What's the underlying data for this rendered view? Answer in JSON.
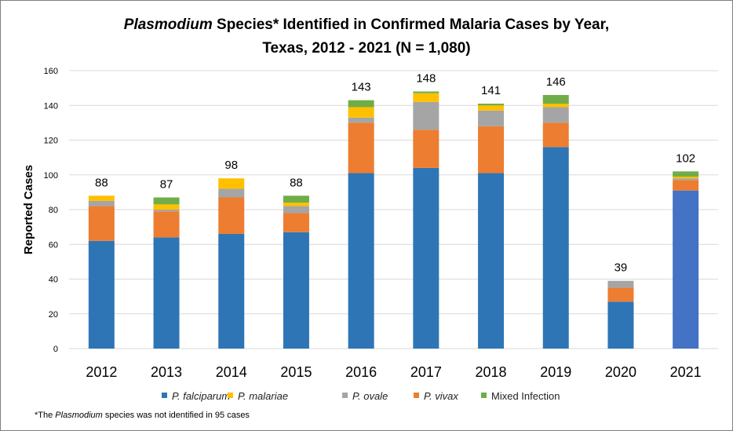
{
  "chart_data": {
    "type": "bar",
    "stacked": true,
    "title_italic": "Plasmodium",
    "title_rest": " Species* Identified in Confirmed Malaria Cases by Year,",
    "title_line2": "Texas, 2012 - 2021 (N = 1,080)",
    "xlabel": "",
    "ylabel": "Reported Cases",
    "ylim": [
      0,
      160
    ],
    "yticks": [
      0,
      20,
      40,
      60,
      80,
      100,
      120,
      140,
      160
    ],
    "grid": true,
    "legend_position": "bottom",
    "categories": [
      "2012",
      "2013",
      "2014",
      "2015",
      "2016",
      "2017",
      "2018",
      "2019",
      "2020",
      "2021"
    ],
    "totals": [
      88,
      87,
      98,
      88,
      143,
      148,
      141,
      146,
      39,
      102
    ],
    "series": [
      {
        "name": "P. falciparum",
        "color": "#2E75B6",
        "values": [
          62,
          64,
          66,
          67,
          101,
          104,
          101,
          116,
          27,
          91
        ]
      },
      {
        "name": "P. vivax",
        "color": "#ED7D31",
        "values": [
          20,
          15,
          21,
          11,
          29,
          22,
          27,
          14,
          8,
          6
        ]
      },
      {
        "name": "P. ovale",
        "color": "#A5A5A5",
        "values": [
          3,
          1,
          5,
          4,
          3,
          16,
          9,
          9,
          4,
          1
        ]
      },
      {
        "name": "P. malariae",
        "color": "#FFC000",
        "values": [
          3,
          3,
          6,
          2,
          6,
          5,
          3,
          2,
          0,
          1
        ]
      },
      {
        "name": "Mixed Infection",
        "color": "#70AD47",
        "values": [
          0,
          4,
          0,
          4,
          4,
          1,
          1,
          5,
          0,
          3
        ]
      }
    ],
    "special_bar_color": {
      "category": "2021",
      "series": "P. falciparum",
      "color": "#4472C4"
    },
    "legend_order": [
      "P. falciparum",
      "P. malariae",
      "P. ovale",
      "P. vivax",
      "Mixed Infection"
    ],
    "italic_legend": [
      "P. falciparum",
      "P. malariae",
      "P. ovale",
      "P. vivax"
    ],
    "footnote_prefix": "*The ",
    "footnote_italic": "Plasmodium",
    "footnote_rest": " species was not identified in 95 cases"
  }
}
